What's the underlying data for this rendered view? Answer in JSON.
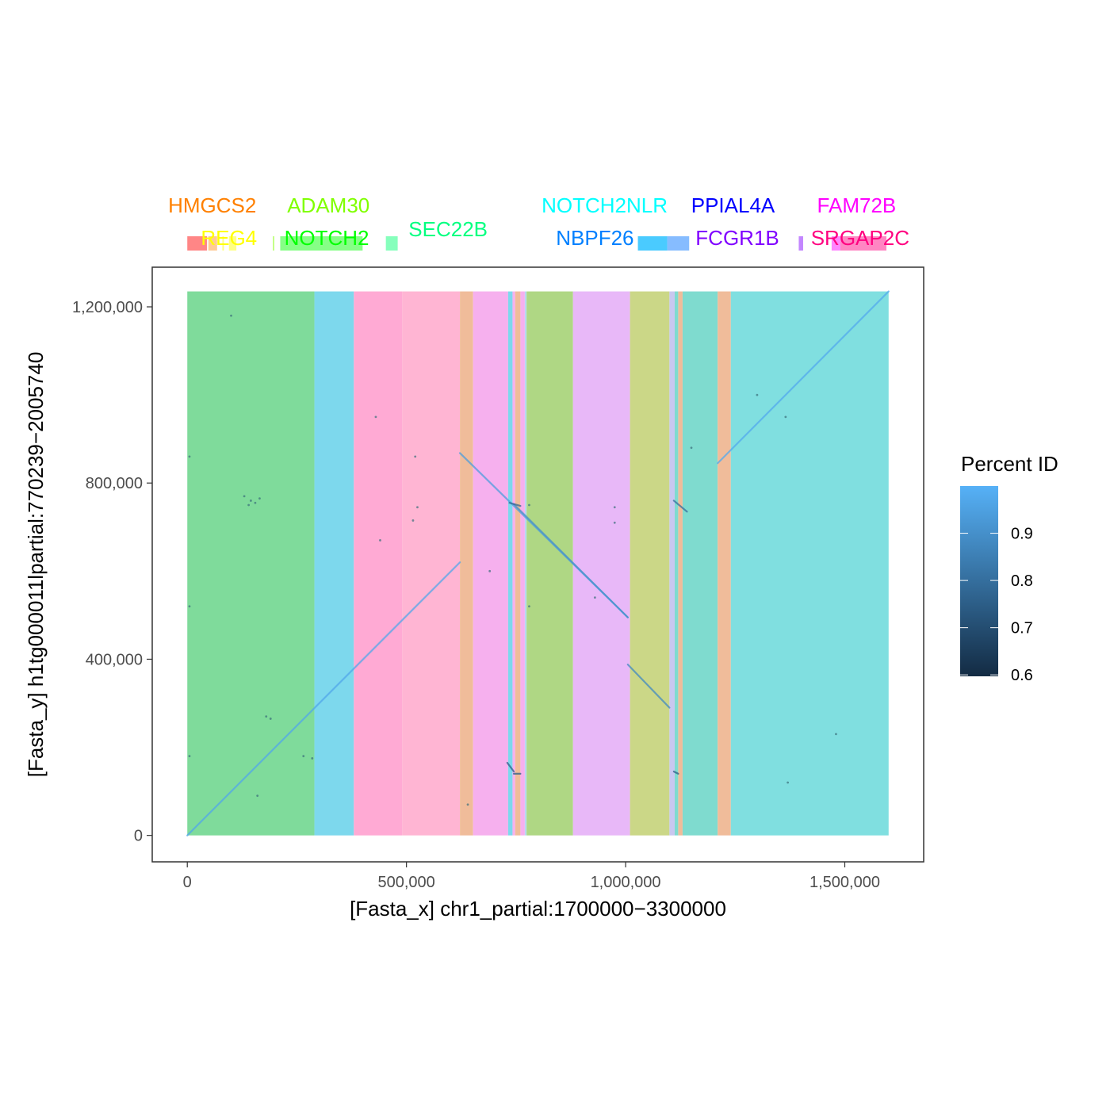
{
  "chart_data": {
    "type": "scatter",
    "subtype": "dotplot",
    "xlabel": "[Fasta_x] chr1_partial:1700000−3300000",
    "ylabel": "[Fasta_y] h1tg000011lpartial:770239−2005740",
    "xlim": [
      -80000,
      1680000
    ],
    "ylim": [
      -60000,
      1290000
    ],
    "x_ticks": [
      {
        "value": 0,
        "label": "0"
      },
      {
        "value": 500000,
        "label": "500,000"
      },
      {
        "value": 1000000,
        "label": "1,000,000"
      },
      {
        "value": 1500000,
        "label": "1,500,000"
      }
    ],
    "y_ticks": [
      {
        "value": 0,
        "label": "0"
      },
      {
        "value": 400000,
        "label": "400,000"
      },
      {
        "value": 800000,
        "label": "800,000"
      },
      {
        "value": 1200000,
        "label": "1,200,000"
      }
    ],
    "grid": false,
    "background_bands_y_range": [
      0,
      1235000
    ],
    "background_bands": [
      {
        "x0": 0,
        "x1": 290000,
        "color": "#7fdb9b"
      },
      {
        "x0": 290000,
        "x1": 380000,
        "color": "#7dd8ed"
      },
      {
        "x0": 380000,
        "x1": 490000,
        "color": "#ffaad4"
      },
      {
        "x0": 490000,
        "x1": 622000,
        "color": "#ffb5d3"
      },
      {
        "x0": 622000,
        "x1": 652000,
        "color": "#f0bc9a"
      },
      {
        "x0": 652000,
        "x1": 732000,
        "color": "#f6b0ee"
      },
      {
        "x0": 732000,
        "x1": 742000,
        "color": "#7dd8ed"
      },
      {
        "x0": 742000,
        "x1": 748000,
        "color": "#f6b0ee"
      },
      {
        "x0": 748000,
        "x1": 760000,
        "color": "#f0bc9a"
      },
      {
        "x0": 760000,
        "x1": 770000,
        "color": "#f6b0ee"
      },
      {
        "x0": 770000,
        "x1": 774000,
        "color": "#b8d8f0"
      },
      {
        "x0": 774000,
        "x1": 880000,
        "color": "#afd784"
      },
      {
        "x0": 880000,
        "x1": 1010000,
        "color": "#e8b8f8"
      },
      {
        "x0": 1010000,
        "x1": 1100000,
        "color": "#cbd787"
      },
      {
        "x0": 1100000,
        "x1": 1112000,
        "color": "#c8c8f0"
      },
      {
        "x0": 1112000,
        "x1": 1120000,
        "color": "#7fdbcf"
      },
      {
        "x0": 1120000,
        "x1": 1130000,
        "color": "#f0bc9a"
      },
      {
        "x0": 1130000,
        "x1": 1210000,
        "color": "#7fdbcf"
      },
      {
        "x0": 1210000,
        "x1": 1240000,
        "color": "#f0bc9a"
      },
      {
        "x0": 1240000,
        "x1": 1600000,
        "color": "#80dfe0"
      }
    ],
    "alignments": [
      {
        "x": [
          0,
          622000
        ],
        "y": [
          0,
          620000
        ],
        "pid": 0.97
      },
      {
        "x": [
          622000,
          1005000
        ],
        "y": [
          868000,
          495000
        ],
        "pid": 0.94
      },
      {
        "x": [
          745000,
          1005000
        ],
        "y": [
          752000,
          495000
        ],
        "pid": 0.9
      },
      {
        "x": [
          1005000,
          1100000
        ],
        "y": [
          388000,
          290000
        ],
        "pid": 0.88
      },
      {
        "x": [
          1210000,
          1600000
        ],
        "y": [
          845000,
          1235000
        ],
        "pid": 0.98
      },
      {
        "x": [
          1110000,
          1140000
        ],
        "y": [
          760000,
          735000
        ],
        "pid": 0.8
      },
      {
        "x": [
          730000,
          745000
        ],
        "y": [
          165000,
          145000
        ],
        "pid": 0.75
      },
      {
        "x": [
          745000,
          760000
        ],
        "y": [
          140000,
          140000
        ],
        "pid": 0.75
      },
      {
        "x": [
          1110000,
          1120000
        ],
        "y": [
          145000,
          140000
        ],
        "pid": 0.75
      },
      {
        "x": [
          735000,
          760000
        ],
        "y": [
          755000,
          748000
        ],
        "pid": 0.78
      }
    ],
    "small_hits": [
      {
        "x": 130000,
        "y": 770000
      },
      {
        "x": 145000,
        "y": 760000
      },
      {
        "x": 155000,
        "y": 755000
      },
      {
        "x": 165000,
        "y": 765000
      },
      {
        "x": 140000,
        "y": 750000
      },
      {
        "x": 180000,
        "y": 270000
      },
      {
        "x": 190000,
        "y": 265000
      },
      {
        "x": 515000,
        "y": 715000
      },
      {
        "x": 525000,
        "y": 745000
      },
      {
        "x": 780000,
        "y": 750000
      },
      {
        "x": 780000,
        "y": 520000
      },
      {
        "x": 975000,
        "y": 710000
      },
      {
        "x": 975000,
        "y": 745000
      },
      {
        "x": 1150000,
        "y": 880000
      },
      {
        "x": 1300000,
        "y": 1000000
      },
      {
        "x": 1365000,
        "y": 950000
      },
      {
        "x": 265000,
        "y": 180000
      },
      {
        "x": 285000,
        "y": 175000
      },
      {
        "x": 100000,
        "y": 1180000
      },
      {
        "x": 160000,
        "y": 90000
      },
      {
        "x": 430000,
        "y": 950000
      },
      {
        "x": 440000,
        "y": 670000
      },
      {
        "x": 520000,
        "y": 860000
      },
      {
        "x": 640000,
        "y": 70000
      },
      {
        "x": 690000,
        "y": 600000
      },
      {
        "x": 930000,
        "y": 540000
      },
      {
        "x": 1370000,
        "y": 120000
      },
      {
        "x": 1480000,
        "y": 230000
      },
      {
        "x": 5000,
        "y": 860000
      },
      {
        "x": 5000,
        "y": 520000
      },
      {
        "x": 5000,
        "y": 180000
      }
    ],
    "color_scale": {
      "title": "Percent ID",
      "min": 0.6,
      "max": 1.0,
      "low_color": "#132b43",
      "high_color": "#56b1f7",
      "breaks": [
        0.6,
        0.7,
        0.8,
        0.9
      ],
      "break_labels": [
        "0.6",
        "0.7",
        "0.8",
        "0.9"
      ],
      "placement": "right"
    },
    "gene_track": {
      "bars": [
        {
          "x0": 0,
          "x1": 45000,
          "color": "#ff8080"
        },
        {
          "x0": 48000,
          "x1": 68000,
          "color": "#ffc890"
        },
        {
          "x0": 80000,
          "x1": 82000,
          "color": "#ffff80"
        },
        {
          "x0": 95000,
          "x1": 112000,
          "color": "#ffff80"
        },
        {
          "x0": 195000,
          "x1": 197000,
          "color": "#c0ff80"
        },
        {
          "x0": 212000,
          "x1": 400000,
          "color": "#80ff80"
        },
        {
          "x0": 453000,
          "x1": 480000,
          "color": "#80ffb8"
        },
        {
          "x0": 1028000,
          "x1": 1095000,
          "color": "#40c8ff"
        },
        {
          "x0": 1095000,
          "x1": 1145000,
          "color": "#80b8ff"
        },
        {
          "x0": 1395000,
          "x1": 1405000,
          "color": "#c080ff"
        },
        {
          "x0": 1470000,
          "x1": 1490000,
          "color": "#ff80ff"
        },
        {
          "x0": 1490000,
          "x1": 1595000,
          "color": "#ff80c0"
        }
      ],
      "labels": [
        {
          "text": "HMGCS2",
          "x": 57000,
          "row": 0,
          "color": "#ff8000"
        },
        {
          "text": "ADAM30",
          "x": 322000,
          "row": 0,
          "color": "#80ff00"
        },
        {
          "text": "NOTCH2NLR",
          "x": 952000,
          "row": 0,
          "color": "#00ffff"
        },
        {
          "text": "PPIAL4A",
          "x": 1245000,
          "row": 0,
          "color": "#0000ff"
        },
        {
          "text": "FAM72B",
          "x": 1527000,
          "row": 0,
          "color": "#ff00ff"
        },
        {
          "text": "SEC22B",
          "x": 595000,
          "row": 1,
          "color": "#00ff80"
        },
        {
          "text": "REG4",
          "x": 95000,
          "row": 2,
          "color": "#ffff00"
        },
        {
          "text": "NOTCH2",
          "x": 318000,
          "row": 2,
          "color": "#00ff00"
        },
        {
          "text": "NBPF26",
          "x": 930000,
          "row": 2,
          "color": "#0080ff"
        },
        {
          "text": "FCGR1B",
          "x": 1255000,
          "row": 2,
          "color": "#8000ff"
        },
        {
          "text": "SRGAP2C",
          "x": 1535000,
          "row": 2,
          "color": "#ff0080"
        }
      ]
    }
  }
}
